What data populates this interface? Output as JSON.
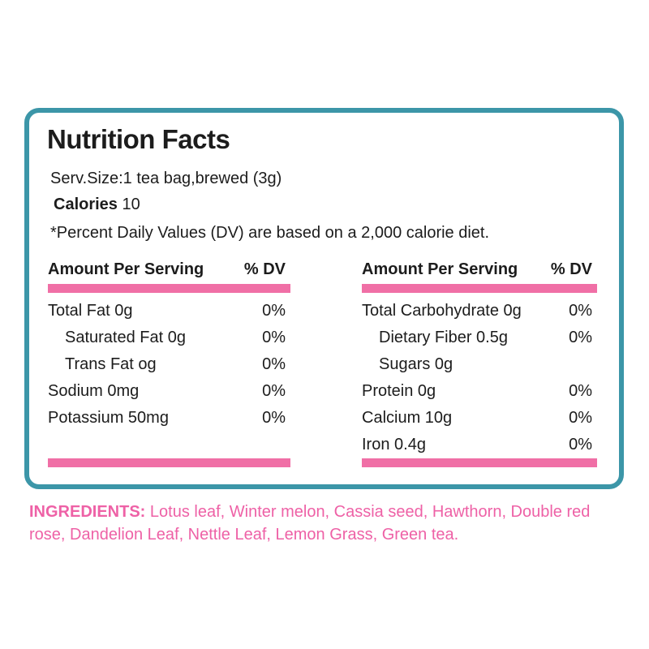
{
  "colors": {
    "border_teal": "#3c96a8",
    "bar_pink": "#f06fa6",
    "ingredients_pink": "#ee61a6",
    "text": "#1c1c1c"
  },
  "label": {
    "title": "Nutrition Facts",
    "serving_size": "Serv.Size:1 tea bag,brewed (3g)",
    "calories_label": "Calories",
    "calories_value": "10",
    "dv_note": "*Percent Daily Values (DV) are based on a 2,000 calorie diet.",
    "columns": [
      {
        "header_amount": "Amount Per Serving",
        "header_dv": "% DV",
        "rows": [
          {
            "name": "Total Fat 0g",
            "dv": "0%",
            "indent": false
          },
          {
            "name": "Saturated Fat 0g",
            "dv": "0%",
            "indent": true
          },
          {
            "name": "Trans Fat og",
            "dv": "0%",
            "indent": true
          },
          {
            "name": "Sodium 0mg",
            "dv": "0%",
            "indent": false
          },
          {
            "name": "Potassium 50mg",
            "dv": "0%",
            "indent": false
          }
        ]
      },
      {
        "header_amount": "Amount Per Serving",
        "header_dv": "% DV",
        "rows": [
          {
            "name": "Total Carbohydrate 0g",
            "dv": "0%",
            "indent": false
          },
          {
            "name": "Dietary Fiber 0.5g",
            "dv": "0%",
            "indent": true
          },
          {
            "name": "Sugars 0g",
            "dv": "",
            "indent": true
          },
          {
            "name": "Protein 0g",
            "dv": "0%",
            "indent": false
          },
          {
            "name": "Calcium 10g",
            "dv": "0%",
            "indent": false
          },
          {
            "name": "Iron 0.4g",
            "dv": "0%",
            "indent": false
          }
        ]
      }
    ]
  },
  "ingredients": {
    "label": "INGREDIENTS:",
    "text": "Lotus leaf, Winter melon, Cassia seed, Hawthorn, Double red rose, Dandelion Leaf, Nettle Leaf, Lemon Grass, Green tea."
  }
}
